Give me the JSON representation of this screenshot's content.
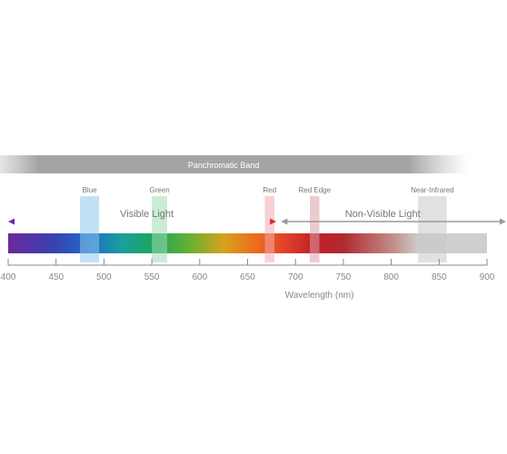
{
  "panchromatic": {
    "label": "Panchromatic Band",
    "band_nm": [
      370,
      880
    ]
  },
  "bands": [
    {
      "key": "blue",
      "label": "Blue",
      "range_nm": [
        475,
        495
      ],
      "color": "#8ec8ec"
    },
    {
      "key": "green",
      "label": "Green",
      "range_nm": [
        550,
        566
      ],
      "color": "#9fdcb5"
    },
    {
      "key": "red",
      "label": "Red",
      "range_nm": [
        668,
        678
      ],
      "color": "#f2a9b3"
    },
    {
      "key": "red-edge",
      "label": "Red Edge",
      "range_nm": [
        715,
        725
      ],
      "color": "#dca0a6"
    },
    {
      "key": "nir",
      "label": "Near-Infrared",
      "range_nm": [
        828,
        858
      ],
      "color": "#c8c8c8"
    }
  ],
  "visible": {
    "label": "Visible Light",
    "range_nm": [
      400,
      680
    ]
  },
  "non_visible": {
    "label": "Non-Visible Light",
    "range_nm": [
      685,
      925
    ]
  },
  "spectrum": {
    "range_nm": [
      400,
      900
    ]
  },
  "axis": {
    "ticks": [
      "400",
      "450",
      "500",
      "550",
      "600",
      "650",
      "700",
      "750",
      "800",
      "850",
      "900"
    ],
    "tick_values": [
      400,
      450,
      500,
      550,
      600,
      650,
      700,
      750,
      800,
      850,
      900
    ],
    "label": "Wavelength (nm)"
  },
  "colors": {
    "visible_arrow_start": "#6a2fa0",
    "visible_arrow_end": "#d93035",
    "non_visible_arrow": "#9a9a9a",
    "axis": "#888888",
    "text": "#777777"
  }
}
